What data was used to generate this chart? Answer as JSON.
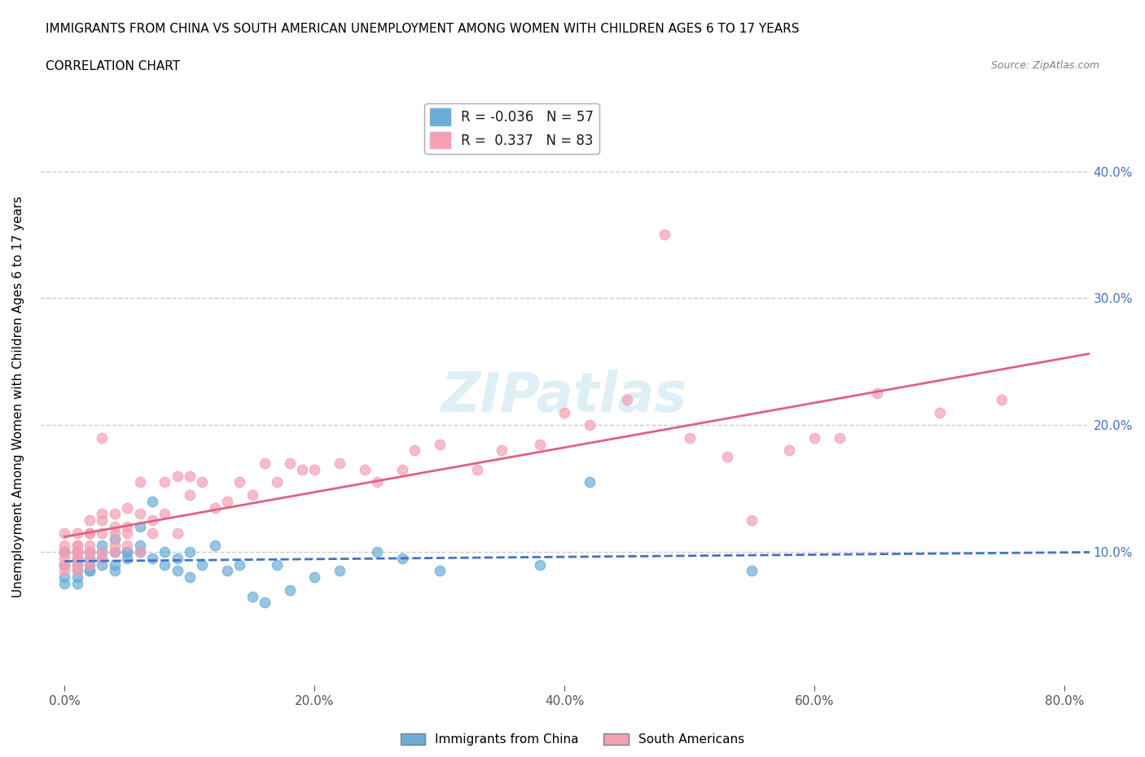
{
  "title_line1": "IMMIGRANTS FROM CHINA VS SOUTH AMERICAN UNEMPLOYMENT AMONG WOMEN WITH CHILDREN AGES 6 TO 17 YEARS",
  "title_line2": "CORRELATION CHART",
  "source": "Source: ZipAtlas.com",
  "ylabel": "Unemployment Among Women with Children Ages 6 to 17 years",
  "xlabel_ticks": [
    "0.0%",
    "20.0%",
    "40.0%",
    "60.0%",
    "80.0%"
  ],
  "xlabel_values": [
    0.0,
    0.2,
    0.4,
    0.6,
    0.8
  ],
  "ylabel_ticks": [
    "10.0%",
    "20.0%",
    "30.0%",
    "40.0%"
  ],
  "ylabel_values": [
    0.1,
    0.2,
    0.3,
    0.4
  ],
  "xlim": [
    -0.02,
    0.85
  ],
  "ylim": [
    -0.01,
    0.45
  ],
  "legend_china_r": "-0.036",
  "legend_china_n": "57",
  "legend_sa_r": "0.337",
  "legend_sa_n": "83",
  "china_color": "#6aaed6",
  "sa_color": "#f4a0b5",
  "china_line_color": "#4472c4",
  "sa_line_color": "#e06080",
  "watermark": "ZIPatlas",
  "background_color": "#ffffff",
  "legend_label_china": "Immigrants from China",
  "legend_label_sa": "South Americans",
  "china_x": [
    0.0,
    0.0,
    0.0,
    0.0,
    0.0,
    0.0,
    0.01,
    0.01,
    0.01,
    0.01,
    0.01,
    0.01,
    0.01,
    0.02,
    0.02,
    0.02,
    0.02,
    0.02,
    0.02,
    0.03,
    0.03,
    0.03,
    0.03,
    0.04,
    0.04,
    0.04,
    0.04,
    0.05,
    0.05,
    0.05,
    0.06,
    0.06,
    0.06,
    0.07,
    0.07,
    0.08,
    0.08,
    0.09,
    0.09,
    0.1,
    0.1,
    0.11,
    0.12,
    0.13,
    0.14,
    0.15,
    0.16,
    0.17,
    0.18,
    0.2,
    0.22,
    0.25,
    0.27,
    0.3,
    0.38,
    0.42,
    0.55
  ],
  "china_y": [
    0.09,
    0.1,
    0.1,
    0.08,
    0.09,
    0.075,
    0.09,
    0.085,
    0.1,
    0.095,
    0.1,
    0.08,
    0.075,
    0.085,
    0.09,
    0.095,
    0.1,
    0.1,
    0.085,
    0.09,
    0.095,
    0.1,
    0.105,
    0.09,
    0.1,
    0.11,
    0.085,
    0.1,
    0.095,
    0.1,
    0.1,
    0.12,
    0.105,
    0.095,
    0.14,
    0.09,
    0.1,
    0.085,
    0.095,
    0.08,
    0.1,
    0.09,
    0.105,
    0.085,
    0.09,
    0.065,
    0.06,
    0.09,
    0.07,
    0.08,
    0.085,
    0.1,
    0.095,
    0.085,
    0.09,
    0.155,
    0.085
  ],
  "sa_x": [
    0.0,
    0.0,
    0.0,
    0.0,
    0.0,
    0.0,
    0.0,
    0.0,
    0.01,
    0.01,
    0.01,
    0.01,
    0.01,
    0.01,
    0.01,
    0.01,
    0.01,
    0.02,
    0.02,
    0.02,
    0.02,
    0.02,
    0.02,
    0.02,
    0.02,
    0.03,
    0.03,
    0.03,
    0.03,
    0.03,
    0.03,
    0.04,
    0.04,
    0.04,
    0.04,
    0.04,
    0.05,
    0.05,
    0.05,
    0.05,
    0.06,
    0.06,
    0.06,
    0.07,
    0.07,
    0.08,
    0.08,
    0.09,
    0.09,
    0.1,
    0.1,
    0.11,
    0.12,
    0.13,
    0.14,
    0.15,
    0.16,
    0.17,
    0.18,
    0.19,
    0.2,
    0.22,
    0.24,
    0.25,
    0.27,
    0.28,
    0.3,
    0.33,
    0.35,
    0.38,
    0.4,
    0.42,
    0.45,
    0.48,
    0.5,
    0.53,
    0.55,
    0.58,
    0.6,
    0.62,
    0.65,
    0.7,
    0.75
  ],
  "sa_y": [
    0.09,
    0.1,
    0.085,
    0.095,
    0.105,
    0.115,
    0.1,
    0.09,
    0.095,
    0.1,
    0.105,
    0.09,
    0.115,
    0.1,
    0.095,
    0.085,
    0.105,
    0.1,
    0.115,
    0.125,
    0.09,
    0.105,
    0.095,
    0.115,
    0.1,
    0.125,
    0.13,
    0.1,
    0.115,
    0.095,
    0.19,
    0.12,
    0.13,
    0.105,
    0.115,
    0.1,
    0.135,
    0.12,
    0.105,
    0.115,
    0.155,
    0.1,
    0.13,
    0.125,
    0.115,
    0.155,
    0.13,
    0.16,
    0.115,
    0.145,
    0.16,
    0.155,
    0.135,
    0.14,
    0.155,
    0.145,
    0.17,
    0.155,
    0.17,
    0.165,
    0.165,
    0.17,
    0.165,
    0.155,
    0.165,
    0.18,
    0.185,
    0.165,
    0.18,
    0.185,
    0.21,
    0.2,
    0.22,
    0.35,
    0.19,
    0.175,
    0.125,
    0.18,
    0.19,
    0.19,
    0.225,
    0.21,
    0.22
  ],
  "grid_color": "#cccccc",
  "tick_color": "#555555",
  "right_tick_color": "#4472c4"
}
